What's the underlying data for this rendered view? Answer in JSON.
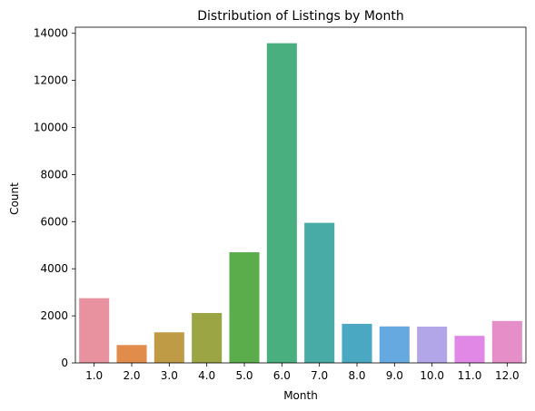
{
  "chart_data": {
    "type": "bar",
    "title": "Distribution of Listings by Month",
    "xlabel": "Month",
    "ylabel": "Count",
    "categories": [
      "1.0",
      "2.0",
      "3.0",
      "4.0",
      "5.0",
      "6.0",
      "7.0",
      "8.0",
      "9.0",
      "10.0",
      "11.0",
      "12.0"
    ],
    "values": [
      2750,
      760,
      1300,
      2120,
      4700,
      13580,
      5950,
      1660,
      1550,
      1540,
      1150,
      1780
    ],
    "colors": [
      "#e9929f",
      "#e28c4c",
      "#c09b45",
      "#9ca544",
      "#5bad4b",
      "#4aaf7e",
      "#49aba5",
      "#4aa8c2",
      "#66a9e0",
      "#b2a6e8",
      "#e187e6",
      "#e58ec8"
    ],
    "yticks": [
      0,
      2000,
      4000,
      6000,
      8000,
      10000,
      12000,
      14000
    ],
    "ylim": [
      0,
      14259
    ],
    "grid": false,
    "legend": "none"
  }
}
